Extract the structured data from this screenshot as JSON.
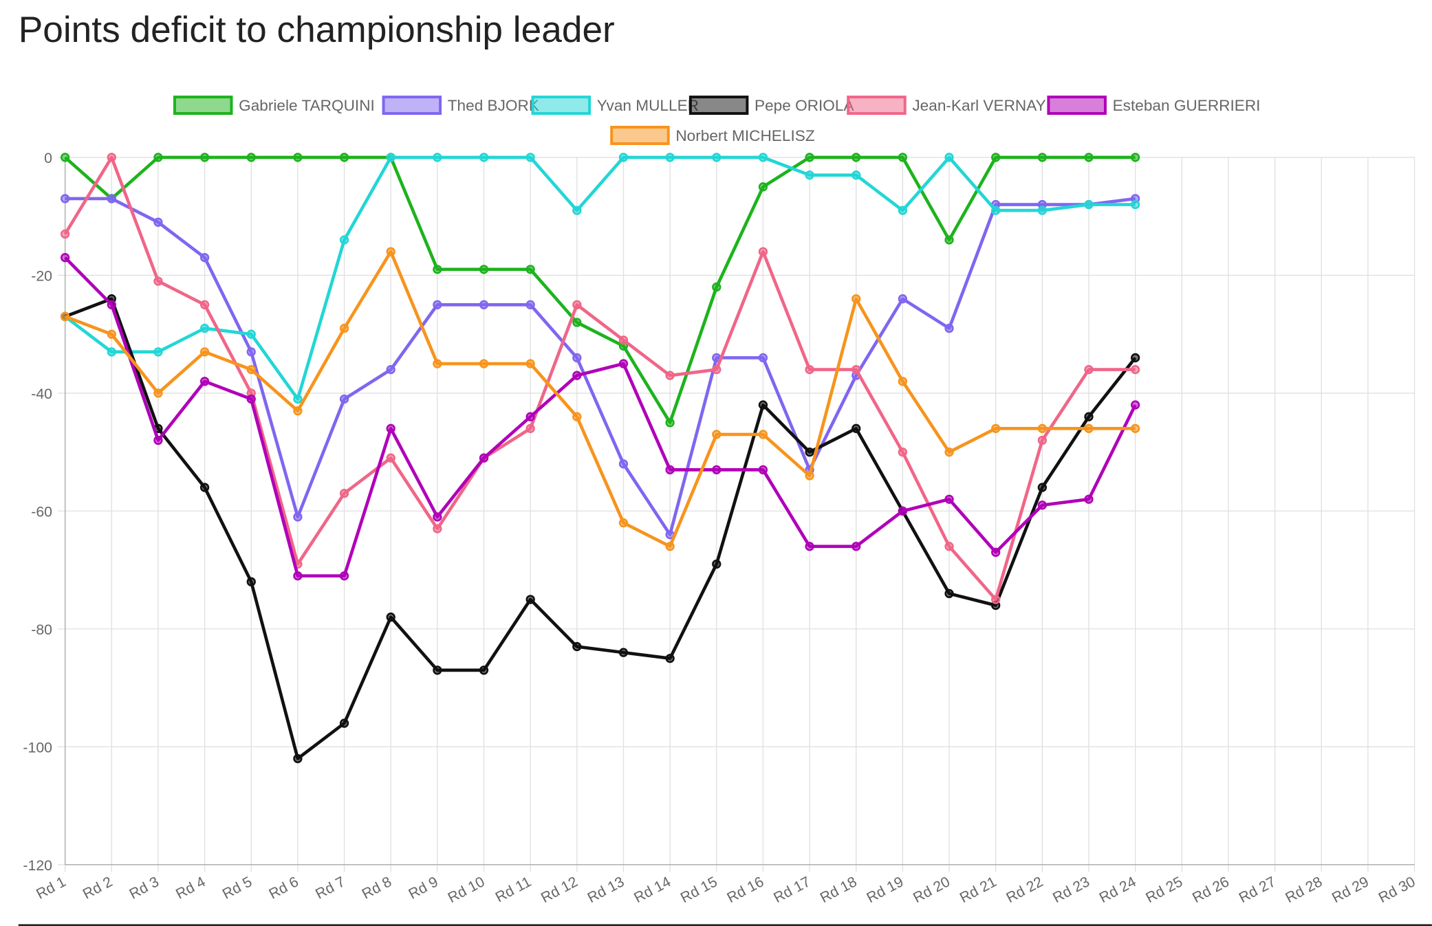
{
  "chart_data": {
    "type": "line",
    "title": "Points deficit to championship leader",
    "categories": [
      "Rd 1",
      "Rd 2",
      "Rd 3",
      "Rd 4",
      "Rd 5",
      "Rd 6",
      "Rd 7",
      "Rd 8",
      "Rd 9",
      "Rd 10",
      "Rd 11",
      "Rd 12",
      "Rd 13",
      "Rd 14",
      "Rd 15",
      "Rd 16",
      "Rd 17",
      "Rd 18",
      "Rd 19",
      "Rd 20",
      "Rd 21",
      "Rd 22",
      "Rd 23",
      "Rd 24",
      "Rd 25",
      "Rd 26",
      "Rd 27",
      "Rd 28",
      "Rd 29",
      "Rd 30"
    ],
    "ylim": [
      -120,
      0
    ],
    "yticks": [
      -120,
      -100,
      -80,
      -60,
      -40,
      -20,
      0
    ],
    "grid": true,
    "legend": "top",
    "series": [
      {
        "name": "Gabriele TARQUINI",
        "color": "#1db31d",
        "values": [
          0,
          -7,
          0,
          0,
          0,
          0,
          0,
          0,
          -19,
          -19,
          -19,
          -28,
          -32,
          -45,
          -22,
          -5,
          0,
          0,
          0,
          -14,
          0,
          0,
          0,
          0,
          null,
          null,
          null,
          null,
          null,
          null
        ]
      },
      {
        "name": "Thed BJORK",
        "color": "#8066f0",
        "values": [
          -7,
          -7,
          -11,
          -17,
          -33,
          -61,
          -41,
          -36,
          -25,
          -25,
          -25,
          -34,
          -52,
          -64,
          -34,
          -34,
          -53,
          -37,
          -24,
          -29,
          -8,
          -8,
          -8,
          -7,
          null,
          null,
          null,
          null,
          null,
          null
        ]
      },
      {
        "name": "Yvan MULLER",
        "color": "#22d6d6",
        "values": [
          -27,
          -33,
          -33,
          -29,
          -30,
          -41,
          -14,
          0,
          0,
          0,
          0,
          -9,
          0,
          0,
          0,
          0,
          -3,
          -3,
          -9,
          0,
          -9,
          -9,
          -8,
          -8,
          null,
          null,
          null,
          null,
          null,
          null
        ]
      },
      {
        "name": "Pepe ORIOLA",
        "color": "#111111",
        "values": [
          -27,
          -24,
          -46,
          -56,
          -72,
          -102,
          -96,
          -78,
          -87,
          -87,
          -75,
          -83,
          -84,
          -85,
          -69,
          -42,
          -50,
          -46,
          -60,
          -74,
          -76,
          -56,
          -44,
          -34,
          null,
          null,
          null,
          null,
          null,
          null
        ]
      },
      {
        "name": "Jean-Karl VERNAY",
        "color": "#f06688",
        "values": [
          -13,
          0,
          -21,
          -25,
          -40,
          -69,
          -57,
          -51,
          -63,
          -51,
          -46,
          -25,
          -31,
          -37,
          -36,
          -16,
          -36,
          -36,
          -50,
          -66,
          -75,
          -48,
          -36,
          -36,
          null,
          null,
          null,
          null,
          null,
          null
        ]
      },
      {
        "name": "Esteban GUERRIERI",
        "color": "#b000b8",
        "values": [
          -17,
          -25,
          -48,
          -38,
          -41,
          -71,
          -71,
          -46,
          -61,
          -51,
          -44,
          -37,
          -35,
          -53,
          -53,
          -53,
          -66,
          -66,
          -60,
          -58,
          -67,
          -59,
          -58,
          -42,
          null,
          null,
          null,
          null,
          null,
          null
        ]
      },
      {
        "name": "Norbert MICHELISZ",
        "color": "#f7941d",
        "values": [
          -27,
          -30,
          -40,
          -33,
          -36,
          -43,
          -29,
          -16,
          -35,
          -35,
          -35,
          -44,
          -62,
          -66,
          -47,
          -47,
          -54,
          -24,
          -38,
          -50,
          -46,
          -46,
          -46,
          -46,
          null,
          null,
          null,
          null,
          null,
          null
        ]
      }
    ]
  }
}
